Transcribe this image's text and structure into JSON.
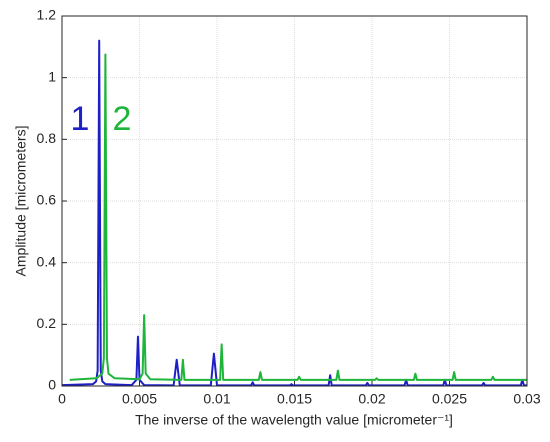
{
  "chart_data": {
    "type": "line",
    "xlabel": "The inverse of the wavelength value  [micrometer⁻¹]",
    "ylabel": "Amplitude [micrometers]",
    "xlim": [
      0,
      0.03
    ],
    "xticks": [
      0,
      0.005,
      0.01,
      0.015,
      0.02,
      0.025,
      0.03
    ],
    "ylim": [
      0,
      1.2
    ],
    "yticks": [
      0,
      0.2,
      0.4,
      0.6,
      0.8,
      1,
      1.2
    ],
    "grid": true,
    "annotations": [
      {
        "text": "1",
        "color": "#1f1fc8"
      },
      {
        "text": "2",
        "color": "#1fb53a"
      }
    ],
    "series": [
      {
        "name": "1",
        "color": "#1f1fc8",
        "x": [
          0,
          0.002,
          0.0022,
          0.0023,
          0.0024,
          0.0025,
          0.0026,
          0.0028,
          0.0045,
          0.0048,
          0.0049,
          0.005,
          0.0053,
          0.0072,
          0.0074,
          0.0076,
          0.0096,
          0.0098,
          0.01,
          0.0122,
          0.0123,
          0.0124,
          0.0147,
          0.0148,
          0.0149,
          0.0172,
          0.0173,
          0.0174,
          0.0196,
          0.0197,
          0.0198,
          0.0221,
          0.0222,
          0.0223,
          0.0246,
          0.0247,
          0.0248,
          0.0271,
          0.0272,
          0.0273,
          0.0296,
          0.0297,
          0.0298,
          0.03
        ],
        "values": [
          0.003,
          0.006,
          0.015,
          0.05,
          1.12,
          0.05,
          0.015,
          0.006,
          0.003,
          0.02,
          0.16,
          0.02,
          0.003,
          0.002,
          0.085,
          0.002,
          0.002,
          0.105,
          0.002,
          0.002,
          0.012,
          0.002,
          0.002,
          0.006,
          0.002,
          0.002,
          0.035,
          0.002,
          0.002,
          0.01,
          0.002,
          0.002,
          0.02,
          0.002,
          0.002,
          0.02,
          0.002,
          0.002,
          0.01,
          0.002,
          0.002,
          0.02,
          0.002,
          0.002
        ]
      },
      {
        "name": "2",
        "color": "#1fb53a",
        "x": [
          0.0005,
          0.0022,
          0.0026,
          0.0027,
          0.0028,
          0.0029,
          0.003,
          0.0034,
          0.005,
          0.0052,
          0.0053,
          0.0054,
          0.0057,
          0.0077,
          0.0078,
          0.0079,
          0.0102,
          0.0103,
          0.0104,
          0.0127,
          0.0128,
          0.0129,
          0.0152,
          0.0153,
          0.0154,
          0.0177,
          0.0178,
          0.0179,
          0.0202,
          0.0203,
          0.0204,
          0.0227,
          0.0228,
          0.0229,
          0.0252,
          0.0253,
          0.0254,
          0.0277,
          0.0278,
          0.0279,
          0.03
        ],
        "values": [
          0.02,
          0.025,
          0.04,
          0.09,
          1.075,
          0.09,
          0.04,
          0.025,
          0.022,
          0.04,
          0.23,
          0.04,
          0.022,
          0.02,
          0.085,
          0.02,
          0.02,
          0.135,
          0.02,
          0.02,
          0.045,
          0.02,
          0.02,
          0.03,
          0.02,
          0.02,
          0.05,
          0.02,
          0.02,
          0.025,
          0.02,
          0.02,
          0.04,
          0.02,
          0.02,
          0.045,
          0.02,
          0.02,
          0.03,
          0.02,
          0.02
        ]
      }
    ]
  }
}
